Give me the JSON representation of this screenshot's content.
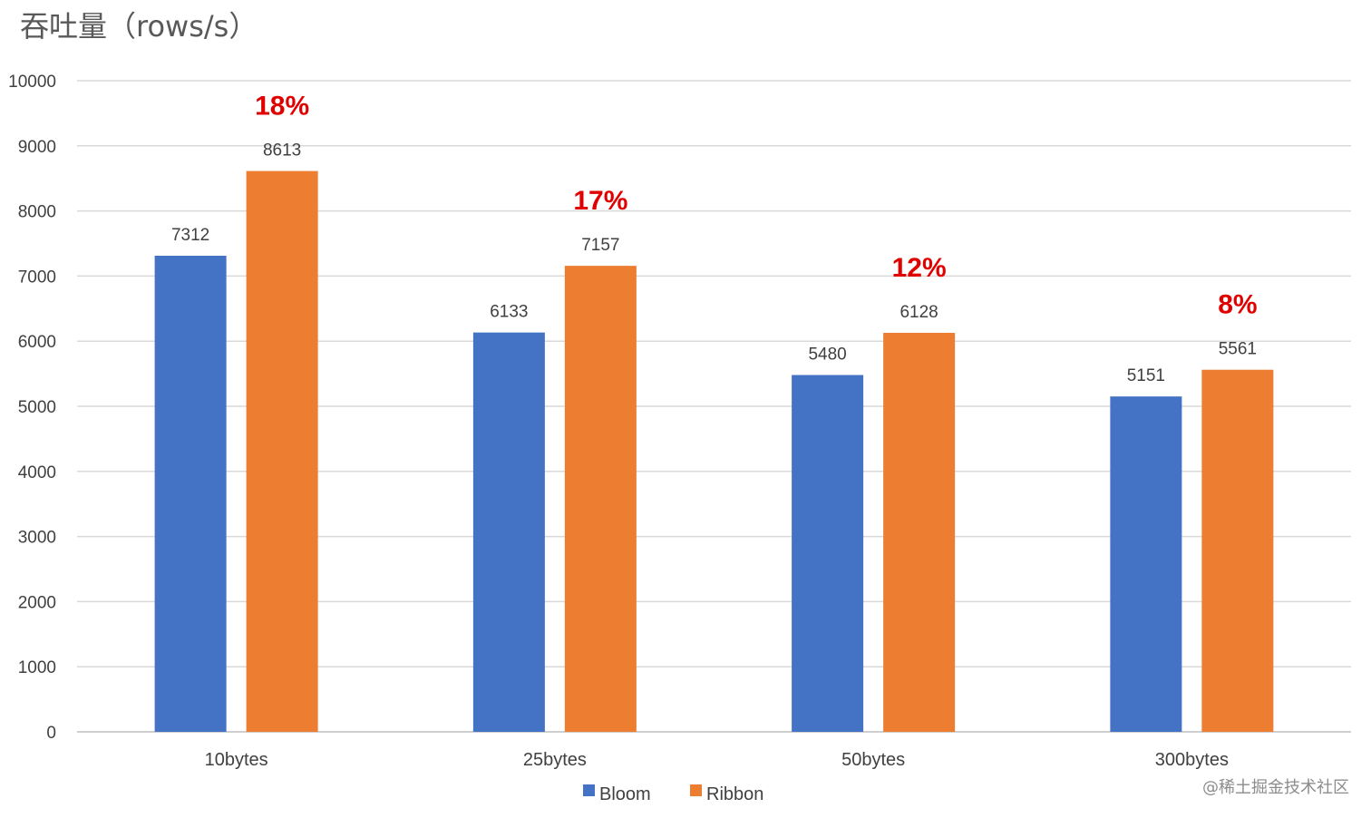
{
  "chart_data": {
    "type": "bar",
    "title": "吞吐量（rows/s）",
    "categories": [
      "10bytes",
      "25bytes",
      "50bytes",
      "300bytes"
    ],
    "series": [
      {
        "name": "Bloom",
        "values": [
          7312,
          6133,
          5480,
          5151
        ],
        "color": "#4472C4"
      },
      {
        "name": "Ribbon",
        "values": [
          8613,
          7157,
          6128,
          5561
        ],
        "color": "#ED7D31"
      }
    ],
    "annotations": [
      "18%",
      "17%",
      "12%",
      "8%"
    ],
    "annotation_color": "#E00000",
    "ylim": [
      0,
      10000
    ],
    "yticks": [
      0,
      1000,
      2000,
      3000,
      4000,
      5000,
      6000,
      7000,
      8000,
      9000,
      10000
    ],
    "grid": true,
    "legend_position": "bottom",
    "xlabel": "",
    "ylabel": ""
  },
  "watermark": "@稀土掘金技术社区",
  "colors": {
    "grid": "#D9D9D9",
    "axis": "#BFBFBF"
  }
}
